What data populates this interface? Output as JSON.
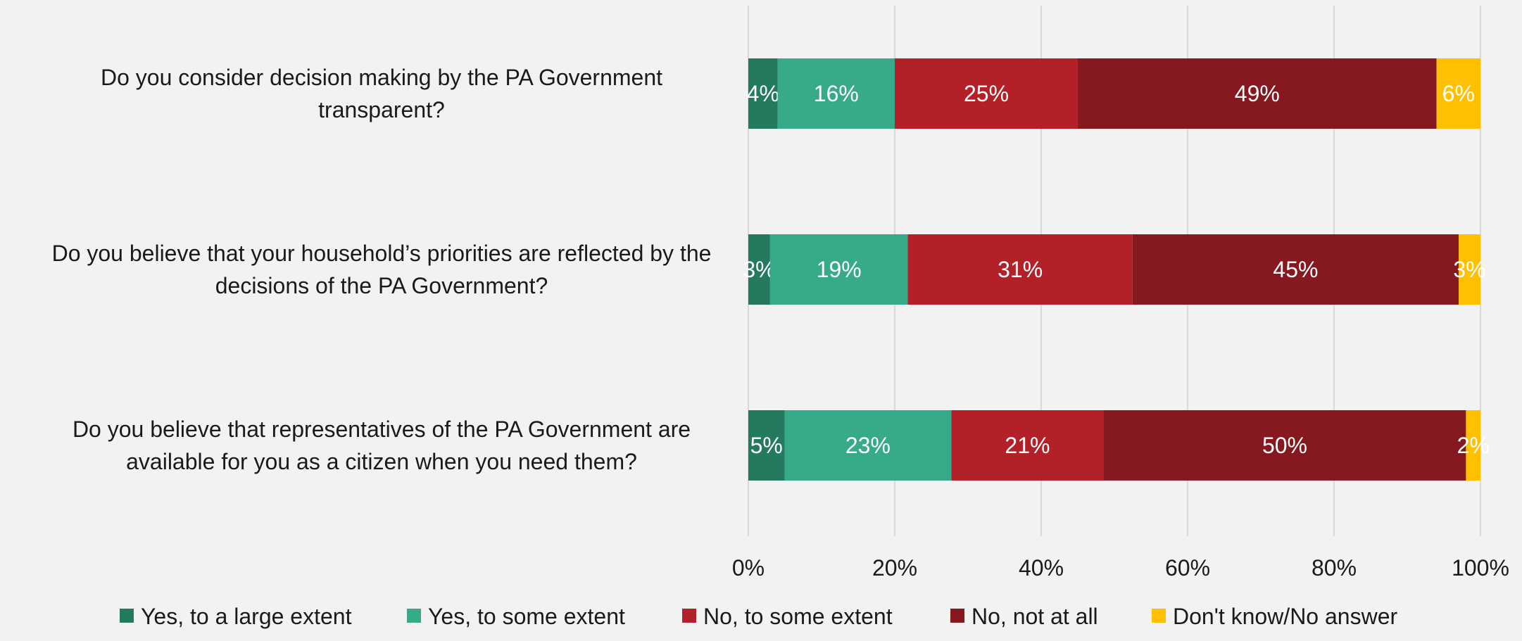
{
  "chart_data": {
    "type": "bar",
    "orientation": "horizontal",
    "stacked": "percent",
    "categories": [
      "Do you consider decision making by the PA Government transparent?",
      "Do you believe that your household’s priorities are reflected by the decisions of the PA Government?",
      "Do you believe that representatives of the PA Government are available for you as a citizen when you need them?"
    ],
    "category_lines": [
      [
        "Do you consider decision making by the PA Government",
        "transparent?"
      ],
      [
        "Do you believe that your household’s priorities are reflected by the",
        "decisions of the PA Government?"
      ],
      [
        "Do you believe that representatives of the PA Government are",
        "available for you as a citizen when you need them?"
      ]
    ],
    "series": [
      {
        "name": "Yes, to a large extent",
        "color": "#247a5f",
        "values": [
          4,
          3,
          5
        ],
        "labels": [
          "4%",
          "3%",
          "5%"
        ]
      },
      {
        "name": "Yes, to some extent",
        "color": "#36aa89",
        "values": [
          16,
          19,
          23
        ],
        "labels": [
          "16%",
          "19%",
          "23%"
        ]
      },
      {
        "name": "No, to some extent",
        "color": "#b32128",
        "values": [
          25,
          31,
          21
        ],
        "labels": [
          "25%",
          "31%",
          "21%"
        ]
      },
      {
        "name": "No, not at all",
        "color": "#85191f",
        "values": [
          49,
          45,
          50
        ],
        "labels": [
          "49%",
          "45%",
          "50%"
        ]
      },
      {
        "name": "Don't know/No answer",
        "color": "#ffc000",
        "values": [
          6,
          3,
          2
        ],
        "labels": [
          "6%",
          "3%",
          "2%"
        ]
      }
    ],
    "x_ticks": [
      "0%",
      "20%",
      "40%",
      "60%",
      "80%",
      "100%"
    ],
    "xlim": [
      0,
      100
    ],
    "grid": true,
    "legend_position": "bottom",
    "xlabel": "",
    "ylabel": "",
    "title": ""
  }
}
